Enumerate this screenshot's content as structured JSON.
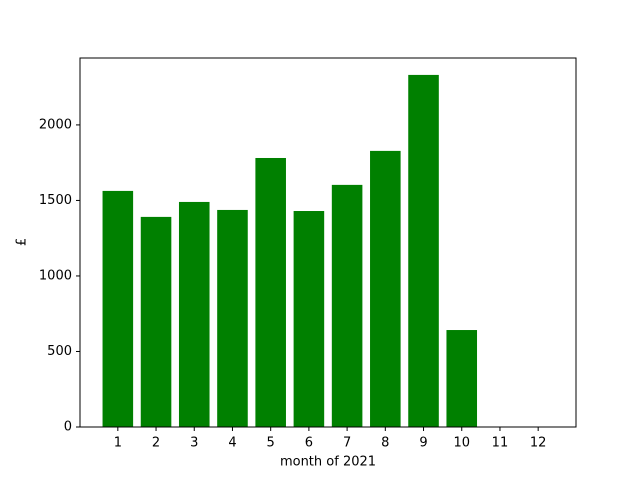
{
  "chart_data": {
    "type": "bar",
    "x_label": "month of 2021",
    "y_label": "£",
    "x": [
      1,
      2,
      3,
      4,
      5,
      6,
      7,
      8,
      9,
      10,
      11,
      12
    ],
    "values": [
      1563,
      1391,
      1490,
      1437,
      1781,
      1430,
      1603,
      1828,
      2331,
      642,
      0,
      0
    ],
    "color": "#008000",
    "xlim": [
      0.01,
      12.99
    ],
    "xticks": [
      1,
      2,
      3,
      4,
      5,
      6,
      7,
      8,
      9,
      10,
      11,
      12
    ],
    "ylim": [
      0,
      2443
    ],
    "yticks": [
      0,
      500,
      1000,
      1500,
      2000
    ]
  }
}
